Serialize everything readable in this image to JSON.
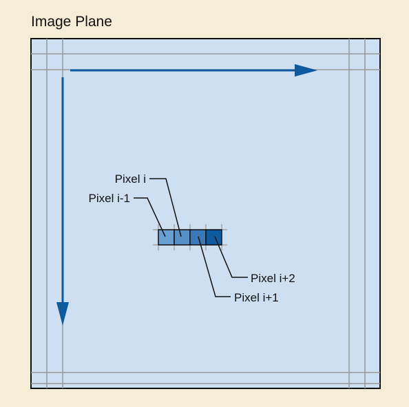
{
  "title": "Image Plane",
  "pixels": [
    {
      "label": "Pixel i-1",
      "fill": "#6a9fd3"
    },
    {
      "label": "Pixel i",
      "fill": "#5590c8"
    },
    {
      "label": "Pixel i+1",
      "fill": "#3a79b8"
    },
    {
      "label": "Pixel i+2",
      "fill": "#0d5a9e"
    }
  ],
  "colors": {
    "background": "#f5edd6",
    "plane_fill": "#cddff0",
    "plane_border": "#111111",
    "grid_line": "#999999",
    "arrow": "#0d5a9e",
    "leader_line": "#111111"
  }
}
